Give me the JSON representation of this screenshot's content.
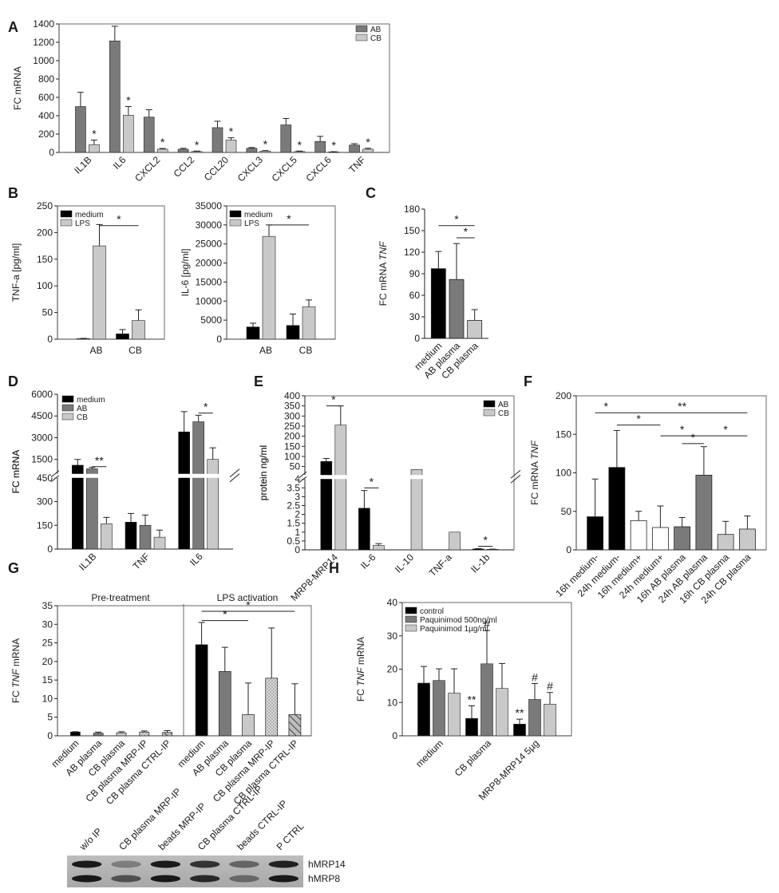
{
  "colors": {
    "black": "#000000",
    "dark_gray": "#7a7a7a",
    "light_gray": "#c9c9c9",
    "white": "#ffffff",
    "dotted": "#bdbdbd"
  },
  "chart_data": [
    {
      "panel": "A",
      "type": "bar",
      "ylabel": "FC mRNA",
      "ylim": [
        0,
        1400
      ],
      "yticks": [
        0,
        200,
        400,
        600,
        800,
        1000,
        1200,
        1400
      ],
      "categories": [
        "IL1B",
        "IL6",
        "CXCL2",
        "CCL2",
        "CCL20",
        "CXCL3",
        "CXCL5",
        "CXCL6",
        "TNF"
      ],
      "series": [
        {
          "name": "AB",
          "color": "#7a7a7a",
          "values": [
            500,
            1215,
            385,
            35,
            270,
            45,
            300,
            120,
            80
          ],
          "errors": [
            155,
            160,
            80,
            10,
            70,
            8,
            70,
            55,
            15
          ]
        },
        {
          "name": "CB",
          "color": "#c9c9c9",
          "values": [
            85,
            405,
            35,
            10,
            135,
            15,
            10,
            5,
            35
          ],
          "errors": [
            50,
            95,
            8,
            5,
            25,
            5,
            5,
            3,
            10
          ]
        }
      ],
      "annotations": [
        {
          "text": "*",
          "category": 0,
          "series": 1
        },
        {
          "text": "*",
          "category": 1,
          "series": 1
        },
        {
          "text": "*",
          "category": 2,
          "series": 1
        },
        {
          "text": "*",
          "category": 3,
          "series": 1
        },
        {
          "text": "*",
          "category": 4,
          "series": 1
        },
        {
          "text": "*",
          "category": 5,
          "series": 1
        },
        {
          "text": "*",
          "category": 6,
          "series": 1
        },
        {
          "text": "*",
          "category": 7,
          "series": 1
        },
        {
          "text": "*",
          "category": 8,
          "series": 1
        }
      ],
      "legend": "top-right",
      "grid": false
    },
    {
      "panel": "B",
      "type": "bar",
      "ylabel": "TNF-a [pg/ml]",
      "ylim": [
        0,
        250
      ],
      "yticks": [
        0,
        50,
        100,
        150,
        200,
        250
      ],
      "categories": [
        "AB",
        "CB"
      ],
      "series": [
        {
          "name": "medium",
          "color": "#000000",
          "values": [
            1,
            10
          ],
          "errors": [
            0.5,
            8
          ]
        },
        {
          "name": "LPS",
          "color": "#c9c9c9",
          "values": [
            175,
            35
          ],
          "errors": [
            40,
            20
          ]
        }
      ],
      "brackets": [
        {
          "text": "*",
          "from": [
            0,
            1
          ],
          "to": [
            1,
            1
          ],
          "y": 213
        }
      ],
      "legend": "top-left",
      "grid": false
    },
    {
      "panel": "B",
      "type": "bar",
      "ylabel": "IL-6 [pg/ml]",
      "ylim": [
        0,
        35000
      ],
      "yticks": [
        0,
        5000,
        10000,
        15000,
        20000,
        25000,
        30000,
        35000
      ],
      "categories": [
        "AB",
        "CB"
      ],
      "series": [
        {
          "name": "medium",
          "color": "#000000",
          "values": [
            3200,
            3600
          ],
          "errors": [
            1000,
            3000
          ]
        },
        {
          "name": "LPS",
          "color": "#c9c9c9",
          "values": [
            27000,
            8500
          ],
          "errors": [
            3000,
            1800
          ]
        }
      ],
      "brackets": [
        {
          "text": "*",
          "from": [
            0,
            1
          ],
          "to": [
            1,
            1
          ],
          "y": 30000
        }
      ],
      "legend": "top-left",
      "grid": false
    },
    {
      "panel": "C",
      "type": "bar",
      "ylabel": "FC mRNA TNF",
      "ylim": [
        0,
        180
      ],
      "yticks": [
        0,
        30,
        60,
        90,
        120,
        150,
        180
      ],
      "categories": [
        "medium",
        "AB plasma",
        "CB plasma"
      ],
      "series": [
        {
          "name": "",
          "colors": [
            "#000000",
            "#7a7a7a",
            "#c9c9c9"
          ],
          "values": [
            97,
            82,
            25
          ],
          "errors": [
            24,
            50,
            15
          ]
        }
      ],
      "brackets": [
        {
          "text": "*",
          "from": 0,
          "to": 2,
          "y": 157
        },
        {
          "text": "*",
          "from": 1,
          "to": 2,
          "y": 140
        }
      ],
      "grid": false
    },
    {
      "panel": "D",
      "type": "bar",
      "ylabel": "FC mRNA",
      "broken_axis": true,
      "ylim_lower": [
        0,
        450
      ],
      "yticks_lower": [
        0,
        150,
        300,
        450
      ],
      "ylim_upper": [
        450,
        6000
      ],
      "yticks_upper": [
        450,
        1500,
        3000,
        4500,
        6000
      ],
      "categories": [
        "IL1B",
        "TNF",
        "IL6"
      ],
      "series": [
        {
          "name": "medium",
          "color": "#000000",
          "values": [
            1100,
            170,
            3400
          ],
          "errors": [
            400,
            55,
            1400
          ]
        },
        {
          "name": "AB",
          "color": "#7a7a7a",
          "values": [
            850,
            150,
            4100
          ],
          "errors": [
            100,
            65,
            450
          ]
        },
        {
          "name": "CB",
          "color": "#c9c9c9",
          "values": [
            160,
            75,
            1500
          ],
          "errors": [
            40,
            45,
            800
          ]
        }
      ],
      "brackets": [
        {
          "text": "**",
          "from": [
            0,
            1
          ],
          "to": [
            0,
            2
          ],
          "y": 1000
        },
        {
          "text": "*",
          "from": [
            2,
            1
          ],
          "to": [
            2,
            2
          ],
          "y": 4700
        }
      ],
      "legend": "top-left",
      "grid": false
    },
    {
      "panel": "E",
      "type": "bar",
      "ylabel": "protein ng/ml",
      "broken_axis": true,
      "ylim_lower": [
        0,
        4
      ],
      "yticks_lower": [
        0,
        0.5,
        1,
        1.5,
        2,
        2.5,
        3,
        3.5,
        4
      ],
      "ylim_upper": [
        4,
        400
      ],
      "yticks_upper": [
        4,
        50,
        100,
        150,
        200,
        250,
        300,
        350,
        400
      ],
      "categories": [
        "MRP8-MRP14",
        "IL-6",
        "IL-10",
        "TNF-a",
        "IL-1b"
      ],
      "series": [
        {
          "name": "AB",
          "color": "#000000",
          "values": [
            75,
            2.35,
            0,
            0,
            0.05
          ],
          "errors": [
            15,
            1.0,
            0,
            0,
            0.02
          ]
        },
        {
          "name": "CB",
          "color": "#c9c9c9",
          "values": [
            255,
            0.25,
            35,
            1.0,
            0.03
          ],
          "errors": [
            95,
            0.1,
            0,
            0,
            0.01
          ]
        }
      ],
      "brackets": [
        {
          "text": "*",
          "from": [
            0,
            0
          ],
          "to": [
            0,
            1
          ],
          "y": 350
        },
        {
          "text": "*",
          "from": [
            1,
            0
          ],
          "to": [
            1,
            1
          ],
          "y": 3.5
        },
        {
          "text": "*",
          "from": [
            4,
            0
          ],
          "to": [
            4,
            1
          ],
          "y": 0.2
        }
      ],
      "legend": "top-right",
      "grid": false
    },
    {
      "panel": "F",
      "type": "bar",
      "ylabel": "FC mRNA TNF",
      "ylim": [
        0,
        200
      ],
      "yticks": [
        0,
        50,
        100,
        150,
        200
      ],
      "categories": [
        "16h medium-",
        "24h medium-",
        "16h medium+",
        "24h medium+",
        "16h AB plasma",
        "24h AB plasma",
        "16h CB plasma",
        "24h CB plasma"
      ],
      "series": [
        {
          "name": "",
          "colors": [
            "#000000",
            "#000000",
            "#ffffff",
            "#ffffff",
            "#7a7a7a",
            "#7a7a7a",
            "#c9c9c9",
            "#c9c9c9"
          ],
          "values": [
            43,
            107,
            38,
            29,
            30,
            97,
            20,
            27
          ],
          "errors": [
            49,
            48,
            12,
            28,
            12,
            37,
            17,
            17
          ]
        }
      ],
      "brackets": [
        {
          "text": "*",
          "from": 0,
          "to": 1,
          "y": 178
        },
        {
          "text": "**",
          "from": 1,
          "to": 7,
          "y": 178
        },
        {
          "text": "*",
          "from": 1,
          "to": 3,
          "y": 162
        },
        {
          "text": "*",
          "from": 3,
          "to": 5,
          "y": 148
        },
        {
          "text": "*",
          "from": 4,
          "to": 5,
          "y": 138
        },
        {
          "text": "*",
          "from": 5,
          "to": 7,
          "y": 148
        }
      ],
      "grid": false
    },
    {
      "panel": "G",
      "type": "bar",
      "ylabel": "FC TNF mRNA",
      "ylim": [
        0,
        35
      ],
      "yticks": [
        0,
        5,
        10,
        15,
        20,
        25,
        30,
        35
      ],
      "groups": [
        "Pre-treatment",
        "LPS activation"
      ],
      "categories": [
        "medium",
        "AB plasma",
        "CB plasma",
        "CB plasma MRP-IP",
        "CB plasma CTRL-IP"
      ],
      "fills": [
        "solid-black",
        "solid-darkgray",
        "solid-lightgray",
        "dotted",
        "hatched"
      ],
      "series": [
        {
          "name": "Pre-treatment",
          "values": [
            1.0,
            0.7,
            0.8,
            1.0,
            0.9
          ],
          "errors": [
            0.1,
            0.3,
            0.3,
            0.3,
            0.5
          ]
        },
        {
          "name": "LPS activation",
          "values": [
            24.5,
            17.3,
            5.7,
            15.5,
            5.7
          ],
          "errors": [
            6,
            6.5,
            8.5,
            13.5,
            8.3
          ]
        }
      ],
      "brackets": [
        {
          "text": "*",
          "from": 0,
          "to": 2,
          "y": 31
        },
        {
          "text": "*",
          "from": 0,
          "to": 4,
          "y": 33.5
        }
      ],
      "grid": false
    },
    {
      "panel": "H",
      "type": "bar",
      "ylabel": "FC TNF mRNA",
      "ylim": [
        0,
        40
      ],
      "yticks": [
        0,
        10,
        20,
        30,
        40
      ],
      "categories": [
        "medium",
        "CB plasma",
        "MRP8-MRP14 5µg"
      ],
      "series": [
        {
          "name": "control",
          "color": "#000000",
          "values": [
            15.8,
            5.2,
            3.5
          ],
          "errors": [
            5,
            3.8,
            1.5
          ]
        },
        {
          "name": "Paquinimod 500ng/ml",
          "color": "#7a7a7a",
          "values": [
            16.6,
            21.6,
            10.9
          ],
          "errors": [
            3.5,
            10,
            4.8
          ]
        },
        {
          "name": "Paquinimod 1µg/ml",
          "color": "#c9c9c9",
          "values": [
            12.8,
            14.2,
            9.5
          ],
          "errors": [
            7.3,
            7.5,
            3.5
          ]
        }
      ],
      "annotations": [
        {
          "text": "**",
          "category": 1,
          "series": 0
        },
        {
          "text": "#",
          "category": 1,
          "series": 1
        },
        {
          "text": "**",
          "category": 2,
          "series": 0
        },
        {
          "text": "#",
          "category": 2,
          "series": 1
        },
        {
          "text": "#",
          "category": 2,
          "series": 2
        }
      ],
      "legend": "top-left",
      "grid": false
    }
  ],
  "blot": {
    "lanes": [
      "w/o IP",
      "CB plasma MRP-IP",
      "beads MRP-IP",
      "CB plasma CTRL-IP",
      "beads CTRL-IP",
      "P CTRL"
    ],
    "bands": [
      "hMRP14",
      "hMRP8"
    ]
  }
}
